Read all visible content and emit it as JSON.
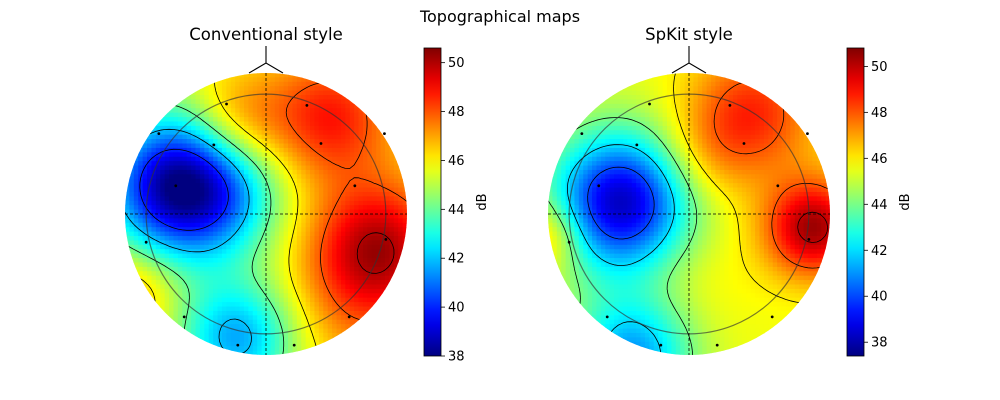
{
  "title": "Topographical maps",
  "chart_data": [
    {
      "type": "heatmap",
      "title": "Conventional style",
      "colormap": "jet",
      "colorbar": {
        "label": "dB",
        "range": [
          38.0,
          50.6
        ],
        "ticks": [
          38,
          40,
          42,
          44,
          46,
          48,
          50
        ]
      },
      "field": {
        "base": 45.8,
        "sources": [
          {
            "x": -0.62,
            "y": 0.2,
            "amp": -7.6,
            "sigma": 0.36
          },
          {
            "x": -0.2,
            "y": -0.88,
            "amp": -4.2,
            "sigma": 0.3
          },
          {
            "x": -0.25,
            "y": 0.1,
            "amp": -1.5,
            "sigma": 0.3
          },
          {
            "x": 0.8,
            "y": -0.22,
            "amp": 3.6,
            "sigma": 0.32
          },
          {
            "x": 0.45,
            "y": 0.68,
            "amp": 3.0,
            "sigma": 0.32
          },
          {
            "x": -0.22,
            "y": 0.65,
            "amp": 2.0,
            "sigma": 0.25
          },
          {
            "x": 0.65,
            "y": -0.62,
            "amp": 1.5,
            "sigma": 0.4
          },
          {
            "x": -0.95,
            "y": -0.55,
            "amp": 1.6,
            "sigma": 0.22
          }
        ]
      },
      "contour_levels": [
        40,
        42,
        44,
        46,
        48,
        50
      ],
      "sensors": [
        [
          -0.28,
          0.78
        ],
        [
          0.29,
          0.77
        ],
        [
          -0.76,
          0.57
        ],
        [
          -0.37,
          0.49
        ],
        [
          0.39,
          0.5
        ],
        [
          0.84,
          0.57
        ],
        [
          -0.64,
          0.2
        ],
        [
          0.63,
          0.2
        ],
        [
          -0.85,
          -0.2
        ],
        [
          0.85,
          -0.18
        ],
        [
          -0.58,
          -0.73
        ],
        [
          0.59,
          -0.73
        ],
        [
          -0.2,
          -0.93
        ],
        [
          0.2,
          -0.93
        ]
      ]
    },
    {
      "type": "heatmap",
      "title": "SpKit style",
      "colormap": "jet",
      "colorbar": {
        "label": "dB",
        "range": [
          37.4,
          50.8
        ],
        "ticks": [
          38,
          40,
          42,
          44,
          46,
          48,
          50
        ]
      },
      "field": {
        "base": 45.6,
        "sources": [
          {
            "x": -0.48,
            "y": 0.08,
            "amp": -7.4,
            "sigma": 0.35
          },
          {
            "x": -0.4,
            "y": -1.0,
            "amp": -4.5,
            "sigma": 0.3
          },
          {
            "x": 0.88,
            "y": -0.1,
            "amp": 4.8,
            "sigma": 0.24
          },
          {
            "x": 0.45,
            "y": 0.72,
            "amp": 3.0,
            "sigma": 0.32
          },
          {
            "x": -1.0,
            "y": -0.15,
            "amp": 2.2,
            "sigma": 0.18
          },
          {
            "x": 0.1,
            "y": 0.4,
            "amp": 1.2,
            "sigma": 0.25
          },
          {
            "x": 0.0,
            "y": -0.4,
            "amp": 0.5,
            "sigma": 0.3
          }
        ]
      },
      "contour_levels": [
        40,
        42,
        44,
        46,
        48,
        50
      ],
      "sensors": [
        [
          -0.28,
          0.78
        ],
        [
          0.29,
          0.77
        ],
        [
          -0.76,
          0.57
        ],
        [
          -0.37,
          0.49
        ],
        [
          0.39,
          0.5
        ],
        [
          0.84,
          0.57
        ],
        [
          -0.64,
          0.2
        ],
        [
          0.63,
          0.2
        ],
        [
          -0.85,
          -0.2
        ],
        [
          0.85,
          -0.18
        ],
        [
          -0.58,
          -0.73
        ],
        [
          0.59,
          -0.73
        ],
        [
          -0.2,
          -0.93
        ],
        [
          0.2,
          -0.93
        ]
      ]
    }
  ]
}
